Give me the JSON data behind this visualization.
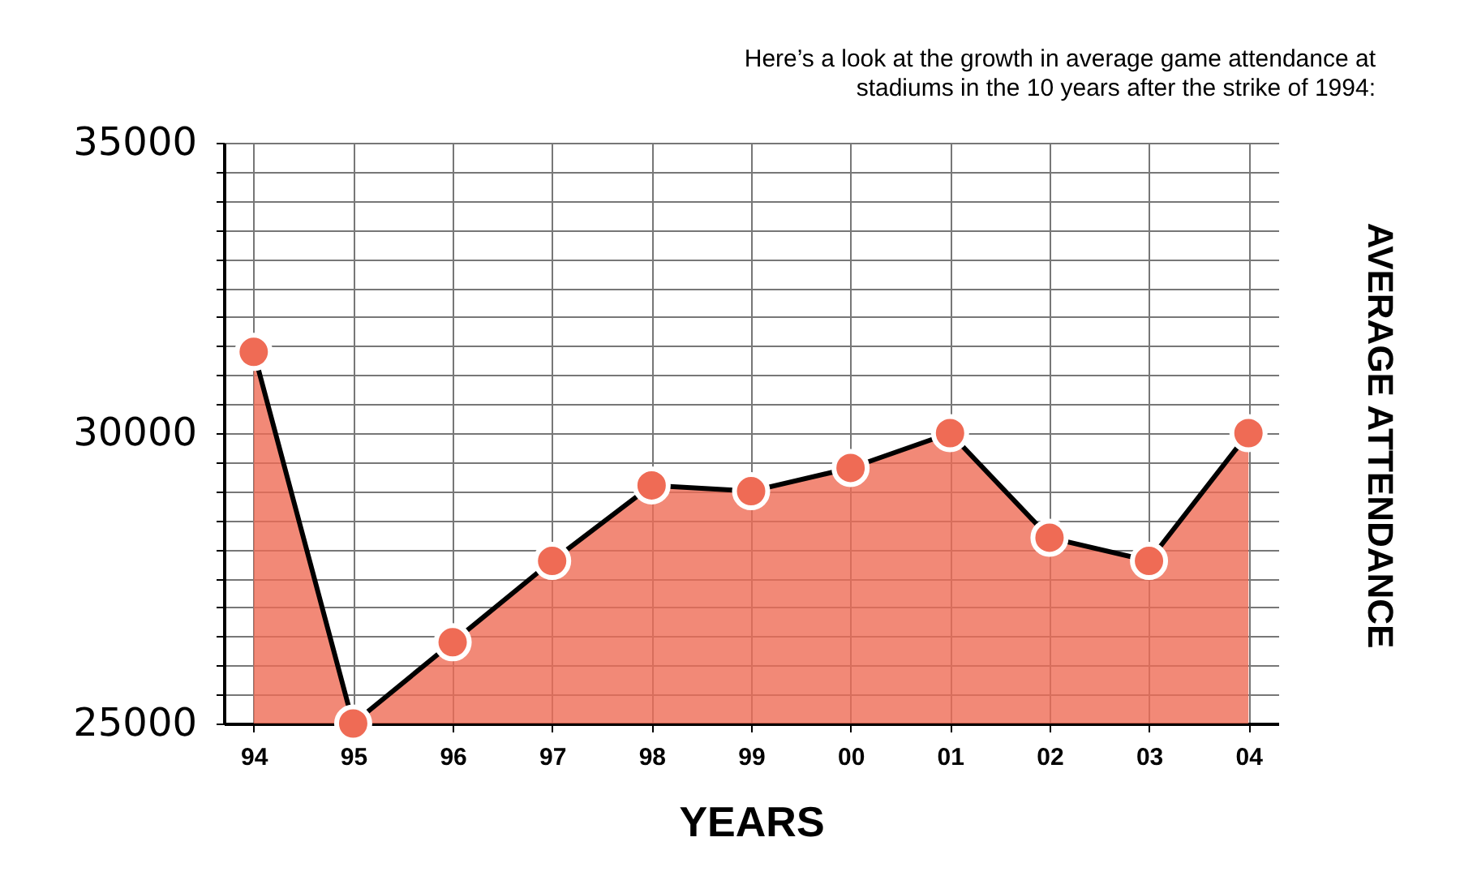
{
  "chart_data": {
    "type": "area",
    "title": "Here’s a look at the growth in average game attendance at stadiums in the 10 years after the strike of 1994:",
    "xlabel": "YEARS",
    "ylabel": "AVERAGE ATTENDANCE",
    "categories": [
      "94",
      "95",
      "96",
      "97",
      "98",
      "99",
      "00",
      "01",
      "02",
      "03",
      "04"
    ],
    "series": [
      {
        "color": "#ef6b55",
        "values": [
          31400,
          25000,
          26400,
          27800,
          29100,
          29000,
          29400,
          30000,
          28200,
          27800,
          30000
        ]
      }
    ],
    "ylim": [
      25000,
      35000
    ],
    "yticks": [
      25000,
      {
        "value": 25500,
        "label": null
      },
      {
        "value": 26000,
        "label": null
      },
      {
        "value": 26500,
        "label": null
      },
      {
        "value": 27000,
        "label": null
      },
      {
        "value": 27500,
        "label": null
      },
      {
        "value": 28000,
        "label": null
      },
      {
        "value": 28500,
        "label": null
      },
      {
        "value": 29000,
        "label": null
      },
      {
        "value": 29500,
        "label": null
      },
      30000,
      {
        "value": 30500,
        "label": null
      },
      {
        "value": 31000,
        "label": null
      },
      {
        "value": 31500,
        "label": null
      },
      {
        "value": 32000,
        "label": null
      },
      {
        "value": 32500,
        "label": null
      },
      {
        "value": 33000,
        "label": null
      },
      {
        "value": 33500,
        "label": null
      },
      {
        "value": 34000,
        "label": null
      },
      {
        "value": 34500,
        "label": null
      },
      35000
    ],
    "grid": true,
    "marker": "circle"
  }
}
